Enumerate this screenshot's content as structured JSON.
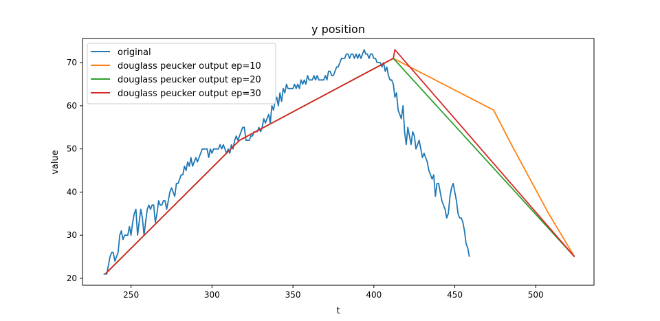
{
  "chart_data": {
    "type": "line",
    "title": "y position",
    "xlabel": "t",
    "ylabel": "value",
    "xlim": [
      220,
      536
    ],
    "ylim": [
      18.4,
      75.6
    ],
    "xticks": [
      250,
      300,
      350,
      400,
      450,
      500
    ],
    "yticks": [
      20,
      30,
      40,
      50,
      60,
      70
    ],
    "grid": false,
    "legend_position": "top-left",
    "series": [
      {
        "name": "original",
        "color": "#1f77b4",
        "points": [
          [
            233,
            21
          ],
          [
            235,
            21
          ],
          [
            236,
            23
          ],
          [
            237,
            25
          ],
          [
            238,
            26
          ],
          [
            239,
            26
          ],
          [
            240,
            24
          ],
          [
            241,
            25
          ],
          [
            242,
            26
          ],
          [
            243,
            30
          ],
          [
            244,
            31
          ],
          [
            245,
            29
          ],
          [
            246,
            30
          ],
          [
            247,
            30
          ],
          [
            248,
            30
          ],
          [
            249,
            32
          ],
          [
            250,
            30
          ],
          [
            251,
            33
          ],
          [
            252,
            35
          ],
          [
            253,
            36
          ],
          [
            254,
            30
          ],
          [
            255,
            33
          ],
          [
            256,
            36
          ],
          [
            257,
            34
          ],
          [
            258,
            30
          ],
          [
            259,
            33
          ],
          [
            260,
            36
          ],
          [
            261,
            37
          ],
          [
            262,
            36
          ],
          [
            263,
            37
          ],
          [
            264,
            37
          ],
          [
            265,
            33
          ],
          [
            266,
            35
          ],
          [
            267,
            38
          ],
          [
            268,
            37
          ],
          [
            269,
            37
          ],
          [
            270,
            38
          ],
          [
            271,
            38
          ],
          [
            272,
            36
          ],
          [
            273,
            38
          ],
          [
            274,
            40
          ],
          [
            275,
            41
          ],
          [
            276,
            40
          ],
          [
            277,
            39
          ],
          [
            278,
            42
          ],
          [
            279,
            42
          ],
          [
            280,
            43
          ],
          [
            281,
            44
          ],
          [
            282,
            44
          ],
          [
            283,
            46
          ],
          [
            284,
            45
          ],
          [
            285,
            47
          ],
          [
            286,
            46
          ],
          [
            287,
            48
          ],
          [
            288,
            46
          ],
          [
            289,
            47
          ],
          [
            290,
            48
          ],
          [
            291,
            47
          ],
          [
            292,
            48
          ],
          [
            293,
            49
          ],
          [
            294,
            50
          ],
          [
            295,
            50
          ],
          [
            296,
            50
          ],
          [
            297,
            50
          ],
          [
            298,
            48
          ],
          [
            299,
            50
          ],
          [
            300,
            49
          ],
          [
            301,
            50
          ],
          [
            302,
            50
          ],
          [
            303,
            50
          ],
          [
            304,
            50
          ],
          [
            305,
            51
          ],
          [
            306,
            50
          ],
          [
            307,
            51
          ],
          [
            308,
            50
          ],
          [
            309,
            49
          ],
          [
            310,
            50
          ],
          [
            311,
            49
          ],
          [
            312,
            51
          ],
          [
            313,
            50
          ],
          [
            314,
            52
          ],
          [
            315,
            53
          ],
          [
            316,
            52
          ],
          [
            317,
            53
          ],
          [
            318,
            54
          ],
          [
            319,
            55
          ],
          [
            320,
            55
          ],
          [
            321,
            52
          ],
          [
            322,
            52
          ],
          [
            323,
            52
          ],
          [
            324,
            53
          ],
          [
            325,
            53
          ],
          [
            326,
            54
          ],
          [
            327,
            54
          ],
          [
            328,
            54
          ],
          [
            329,
            55
          ],
          [
            330,
            54
          ],
          [
            331,
            55
          ],
          [
            332,
            57
          ],
          [
            333,
            56
          ],
          [
            334,
            57
          ],
          [
            335,
            58
          ],
          [
            336,
            56
          ],
          [
            337,
            60
          ],
          [
            338,
            59
          ],
          [
            339,
            61
          ],
          [
            340,
            62
          ],
          [
            341,
            60
          ],
          [
            342,
            63
          ],
          [
            343,
            61
          ],
          [
            344,
            64
          ],
          [
            345,
            63
          ],
          [
            346,
            65
          ],
          [
            347,
            64
          ],
          [
            348,
            64
          ],
          [
            349,
            64
          ],
          [
            350,
            64
          ],
          [
            351,
            65
          ],
          [
            352,
            64
          ],
          [
            353,
            65
          ],
          [
            354,
            64
          ],
          [
            355,
            66
          ],
          [
            356,
            65
          ],
          [
            357,
            66
          ],
          [
            358,
            65
          ],
          [
            359,
            67
          ],
          [
            360,
            66
          ],
          [
            361,
            66
          ],
          [
            362,
            66
          ],
          [
            363,
            67
          ],
          [
            364,
            66
          ],
          [
            365,
            67
          ],
          [
            366,
            66
          ],
          [
            367,
            66
          ],
          [
            368,
            66
          ],
          [
            369,
            66
          ],
          [
            370,
            67
          ],
          [
            371,
            66
          ],
          [
            372,
            68
          ],
          [
            373,
            68
          ],
          [
            374,
            67
          ],
          [
            375,
            67
          ],
          [
            376,
            68
          ],
          [
            377,
            69
          ],
          [
            378,
            69
          ],
          [
            379,
            70
          ],
          [
            380,
            71
          ],
          [
            381,
            71
          ],
          [
            382,
            71
          ],
          [
            383,
            72
          ],
          [
            384,
            72
          ],
          [
            385,
            71
          ],
          [
            386,
            72
          ],
          [
            387,
            72
          ],
          [
            388,
            71
          ],
          [
            389,
            72
          ],
          [
            390,
            71
          ],
          [
            391,
            72
          ],
          [
            392,
            71
          ],
          [
            393,
            72
          ],
          [
            394,
            73
          ],
          [
            395,
            72
          ],
          [
            396,
            72
          ],
          [
            397,
            71
          ],
          [
            398,
            72
          ],
          [
            399,
            72
          ],
          [
            400,
            71
          ],
          [
            401,
            71
          ],
          [
            402,
            70
          ],
          [
            403,
            70
          ],
          [
            404,
            70
          ],
          [
            405,
            69
          ],
          [
            406,
            70
          ],
          [
            407,
            68
          ],
          [
            408,
            69
          ],
          [
            409,
            67
          ],
          [
            410,
            66
          ],
          [
            411,
            66
          ],
          [
            412,
            65
          ],
          [
            413,
            62
          ],
          [
            414,
            63
          ],
          [
            415,
            59
          ],
          [
            416,
            58
          ],
          [
            417,
            57
          ],
          [
            418,
            60
          ],
          [
            419,
            54
          ],
          [
            420,
            51
          ],
          [
            421,
            55
          ],
          [
            422,
            53
          ],
          [
            423,
            51
          ],
          [
            424,
            54
          ],
          [
            425,
            53
          ],
          [
            426,
            50
          ],
          [
            427,
            51
          ],
          [
            428,
            52
          ],
          [
            429,
            50
          ],
          [
            430,
            48
          ],
          [
            431,
            49
          ],
          [
            432,
            48
          ],
          [
            433,
            47
          ],
          [
            434,
            45
          ],
          [
            435,
            44
          ],
          [
            436,
            43
          ],
          [
            437,
            44
          ],
          [
            438,
            39
          ],
          [
            439,
            42
          ],
          [
            440,
            42
          ],
          [
            441,
            40
          ],
          [
            442,
            38
          ],
          [
            443,
            37
          ],
          [
            444,
            36
          ],
          [
            445,
            34
          ],
          [
            446,
            35
          ],
          [
            447,
            39
          ],
          [
            448,
            41
          ],
          [
            449,
            42
          ],
          [
            450,
            40
          ],
          [
            451,
            38
          ],
          [
            452,
            35
          ],
          [
            453,
            34
          ],
          [
            454,
            34
          ],
          [
            455,
            33
          ],
          [
            456,
            31
          ],
          [
            457,
            28
          ],
          [
            458,
            27
          ],
          [
            459,
            25
          ]
        ],
        "x_offset_note": ""
      },
      {
        "name": "douglass peucker output ep=10",
        "color": "#ff7f0e",
        "points": [
          [
            234,
            21
          ],
          [
            317,
            52
          ],
          [
            412,
            71
          ],
          [
            474,
            59
          ],
          [
            485,
            51
          ],
          [
            508,
            35
          ],
          [
            524,
            25
          ]
        ]
      },
      {
        "name": "douglass peucker output ep=20",
        "color": "#2ca02c",
        "points": [
          [
            234,
            21
          ],
          [
            317,
            52
          ],
          [
            412,
            71
          ],
          [
            524,
            25
          ]
        ]
      },
      {
        "name": "douglass peucker output ep=30",
        "color": "#d62728",
        "points": [
          [
            234,
            21
          ],
          [
            317,
            52
          ],
          [
            412,
            71
          ],
          [
            413,
            73
          ],
          [
            524,
            25
          ]
        ]
      }
    ]
  }
}
